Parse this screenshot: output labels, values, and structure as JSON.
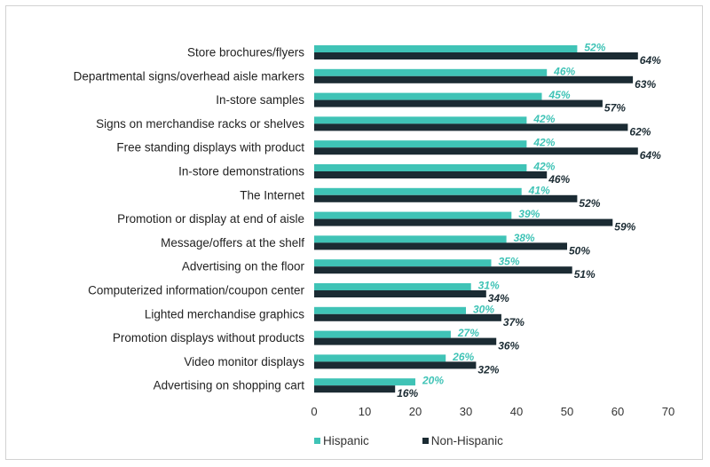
{
  "chart_data": {
    "type": "bar",
    "orientation": "horizontal",
    "categories": [
      "Store brochures/flyers",
      "Departmental signs/overhead aisle markers",
      "In-store samples",
      "Signs on merchandise racks or shelves",
      "Free standing displays with product",
      "In-store demonstrations",
      "The Internet",
      "Promotion or display at end of aisle",
      "Message/offers at the shelf",
      "Advertising on the floor",
      "Computerized information/coupon center",
      "Lighted merchandise graphics",
      "Promotion displays without products",
      "Video monitor displays",
      "Advertising on shopping cart"
    ],
    "series": [
      {
        "name": "Hispanic",
        "color": "#3fc3b6",
        "values": [
          52,
          46,
          45,
          42,
          42,
          42,
          41,
          39,
          38,
          35,
          31,
          30,
          27,
          26,
          20
        ],
        "labels": [
          "52%",
          "46%",
          "45%",
          "42%",
          "42%",
          "42%",
          "41%",
          "39%",
          "38%",
          "35%",
          "31%",
          "30%",
          "27%",
          "26%",
          "20%"
        ]
      },
      {
        "name": "Non-Hispanic",
        "color": "#1b2b33",
        "values": [
          64,
          63,
          57,
          62,
          64,
          46,
          52,
          59,
          50,
          51,
          34,
          37,
          36,
          32,
          16
        ],
        "labels": [
          "64%",
          "63%",
          "57%",
          "62%",
          "64%",
          "46%",
          "52%",
          "59%",
          "50%",
          "51%",
          "34%",
          "37%",
          "36%",
          "32%",
          "16%"
        ]
      }
    ],
    "xlim": [
      0,
      70
    ],
    "xticks": [
      "0",
      "10",
      "20",
      "30",
      "40",
      "50",
      "60",
      "70"
    ],
    "title": "",
    "xlabel": "",
    "ylabel": "",
    "grid": false,
    "legend": "bottom"
  }
}
